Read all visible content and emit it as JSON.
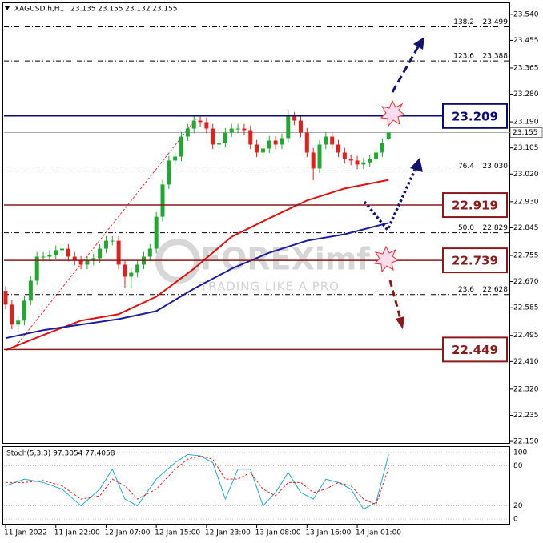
{
  "chart_data": {
    "type": "candlestick",
    "symbol": "XAGUSD.h,H1",
    "header_ohlc": [
      23.135,
      23.155,
      23.132,
      23.155
    ],
    "categories": [
      "11 Jan 2022",
      null,
      null,
      null,
      null,
      null,
      null,
      null,
      "11 Jan 22:00",
      null,
      null,
      null,
      null,
      null,
      null,
      null,
      "12 Jan 07:00",
      null,
      null,
      null,
      null,
      null,
      null,
      null,
      "12 Jan 15:00",
      null,
      null,
      null,
      null,
      null,
      null,
      null,
      "12 Jan 23:00",
      null,
      null,
      null,
      null,
      null,
      null,
      null,
      "13 Jan 08:00",
      null,
      null,
      null,
      null,
      null,
      null,
      null,
      "13 Jan 16:00",
      null,
      null,
      null,
      null,
      null,
      null,
      null,
      "14 Jan 01:00",
      null,
      null,
      null,
      null,
      null
    ],
    "open": [
      22.64,
      22.595,
      22.53,
      22.543,
      22.608,
      22.673,
      22.751,
      22.751,
      22.757,
      22.772,
      22.777,
      22.751,
      22.738,
      22.725,
      22.738,
      22.746,
      22.777,
      22.803,
      22.803,
      22.725,
      22.686,
      22.699,
      22.725,
      22.751,
      22.777,
      22.881,
      22.986,
      23.064,
      23.077,
      23.142,
      23.168,
      23.194,
      23.189,
      23.168,
      23.116,
      23.121,
      23.155,
      23.168,
      23.168,
      23.163,
      23.116,
      23.09,
      23.103,
      23.129,
      23.116,
      23.137,
      23.207,
      23.194,
      23.155,
      23.09,
      23.038,
      23.116,
      23.142,
      23.116,
      23.09,
      23.069,
      23.064,
      23.051,
      23.058,
      23.069,
      23.09,
      23.135
    ],
    "high": [
      22.655,
      22.61,
      22.558,
      22.623,
      22.688,
      22.766,
      22.766,
      22.772,
      22.787,
      22.792,
      22.792,
      22.766,
      22.753,
      22.753,
      22.761,
      22.792,
      22.818,
      22.818,
      22.818,
      22.74,
      22.714,
      22.74,
      22.766,
      22.792,
      22.896,
      23.001,
      23.079,
      23.092,
      23.157,
      23.183,
      23.209,
      23.209,
      23.204,
      23.183,
      23.136,
      23.17,
      23.183,
      23.183,
      23.183,
      23.178,
      23.131,
      23.118,
      23.144,
      23.144,
      23.152,
      23.23,
      23.222,
      23.209,
      23.17,
      23.105,
      23.131,
      23.157,
      23.157,
      23.131,
      23.105,
      23.084,
      23.079,
      23.073,
      23.084,
      23.105,
      23.136,
      23.155
    ],
    "low": [
      22.58,
      22.515,
      22.505,
      22.528,
      22.593,
      22.658,
      22.736,
      22.736,
      22.742,
      22.757,
      22.736,
      22.723,
      22.71,
      22.71,
      22.723,
      22.731,
      22.762,
      22.788,
      22.71,
      22.65,
      22.65,
      22.684,
      22.71,
      22.736,
      22.762,
      22.866,
      22.971,
      23.049,
      23.062,
      23.127,
      23.153,
      23.174,
      23.153,
      23.101,
      23.101,
      23.106,
      23.14,
      23.153,
      23.148,
      23.101,
      23.075,
      23.075,
      23.088,
      23.101,
      23.101,
      23.122,
      23.179,
      23.14,
      23.075,
      23.0,
      23.023,
      23.101,
      23.101,
      23.075,
      23.054,
      23.049,
      23.036,
      23.036,
      23.043,
      23.054,
      23.075,
      23.132
    ],
    "close": [
      22.595,
      22.53,
      22.543,
      22.608,
      22.673,
      22.751,
      22.751,
      22.757,
      22.772,
      22.777,
      22.751,
      22.738,
      22.725,
      22.738,
      22.746,
      22.777,
      22.803,
      22.803,
      22.725,
      22.686,
      22.699,
      22.725,
      22.751,
      22.777,
      22.881,
      22.986,
      23.064,
      23.077,
      23.142,
      23.168,
      23.194,
      23.189,
      23.168,
      23.116,
      23.121,
      23.155,
      23.168,
      23.168,
      23.163,
      23.116,
      23.09,
      23.103,
      23.129,
      23.116,
      23.137,
      23.207,
      23.194,
      23.155,
      23.09,
      23.038,
      23.116,
      23.142,
      23.116,
      23.09,
      23.069,
      23.064,
      23.051,
      23.058,
      23.069,
      23.09,
      23.121,
      23.155
    ],
    "up_color": "#22a832",
    "down_color": "#e0201c",
    "ylim": [
      22.145,
      23.576
    ],
    "yticks": [
      {
        "value": 23.54,
        "label": "23.540"
      },
      23.455,
      23.365,
      {
        "value": 23.28,
        "label": "23.280"
      },
      {
        "value": 23.19,
        "label": "23.190"
      },
      23.105,
      {
        "value": 23.02,
        "label": "23.020"
      },
      {
        "value": 22.93,
        "label": "22.930"
      },
      22.845,
      22.755,
      {
        "value": 22.67,
        "label": "22.670"
      },
      22.585,
      22.495,
      {
        "value": 22.41,
        "label": "22.410"
      },
      {
        "value": 22.32,
        "label": "22.320"
      },
      22.235,
      {
        "value": 22.15,
        "label": "22.150"
      }
    ],
    "current_price": 23.155,
    "moving_averages": [
      {
        "color": "#e01010",
        "x": [
          0,
          6,
          12,
          18,
          24,
          30,
          36,
          42,
          48,
          54,
          61
        ],
        "values": [
          22.447,
          22.496,
          22.543,
          22.564,
          22.621,
          22.712,
          22.816,
          22.876,
          22.934,
          22.973,
          23.001
        ]
      },
      {
        "color": "#1c1ca0",
        "x": [
          0,
          6,
          12,
          18,
          24,
          30,
          36,
          42,
          48,
          54,
          61
        ],
        "values": [
          22.486,
          22.512,
          22.53,
          22.548,
          22.574,
          22.647,
          22.712,
          22.764,
          22.803,
          22.824,
          22.861
        ]
      }
    ],
    "levels": [
      {
        "value": 23.209,
        "color": "#0a0a78"
      },
      {
        "value": 22.919,
        "color": "#8b1a1a"
      },
      {
        "value": 22.739,
        "color": "#8b1a1a"
      },
      {
        "value": 22.449,
        "color": "#8b1a1a"
      }
    ],
    "fib_levels": [
      {
        "ratio": "138.2",
        "price": 23.499
      },
      {
        "ratio": "123.6",
        "price": 23.388
      },
      {
        "ratio": "76.4",
        "price": {
          "value": 23.03,
          "label": "23.030"
        }
      },
      {
        "ratio": "50.0",
        "price": 22.829
      },
      {
        "ratio": "23.6",
        "price": 22.628
      }
    ],
    "watermark": {
      "brand": "FOREXimf",
      "tagline": "TRADING LIKE A PRO"
    },
    "stochastic": {
      "title": "Stoch(5,3,3) 97.3054 77.4058",
      "ylim": [
        -8.3,
        108.3
      ],
      "yticks": [
        100,
        80,
        20,
        0
      ],
      "main": {
        "color": "#20a8c8",
        "x": [
          0,
          3,
          6,
          9,
          12,
          15,
          17,
          19,
          21,
          24,
          27,
          29,
          31,
          33,
          35,
          37,
          39,
          41,
          43,
          45,
          47,
          49,
          51,
          53,
          55,
          57,
          59,
          61
        ],
        "values": [
          50,
          60,
          55,
          45,
          20,
          45,
          75,
          30,
          20,
          60,
          85,
          97,
          95,
          85,
          30,
          75,
          75,
          20,
          40,
          70,
          40,
          30,
          60,
          55,
          45,
          15,
          25,
          97
        ]
      },
      "signal": {
        "color": "#e02020",
        "x": [
          0,
          3,
          6,
          9,
          12,
          15,
          17,
          19,
          21,
          24,
          27,
          29,
          31,
          33,
          35,
          37,
          39,
          41,
          43,
          45,
          47,
          49,
          51,
          53,
          55,
          57,
          59,
          61
        ],
        "values": [
          55,
          55,
          58,
          50,
          30,
          35,
          60,
          50,
          30,
          45,
          75,
          90,
          95,
          90,
          60,
          60,
          70,
          45,
          35,
          55,
          55,
          40,
          45,
          55,
          50,
          30,
          22,
          77
        ]
      }
    }
  }
}
